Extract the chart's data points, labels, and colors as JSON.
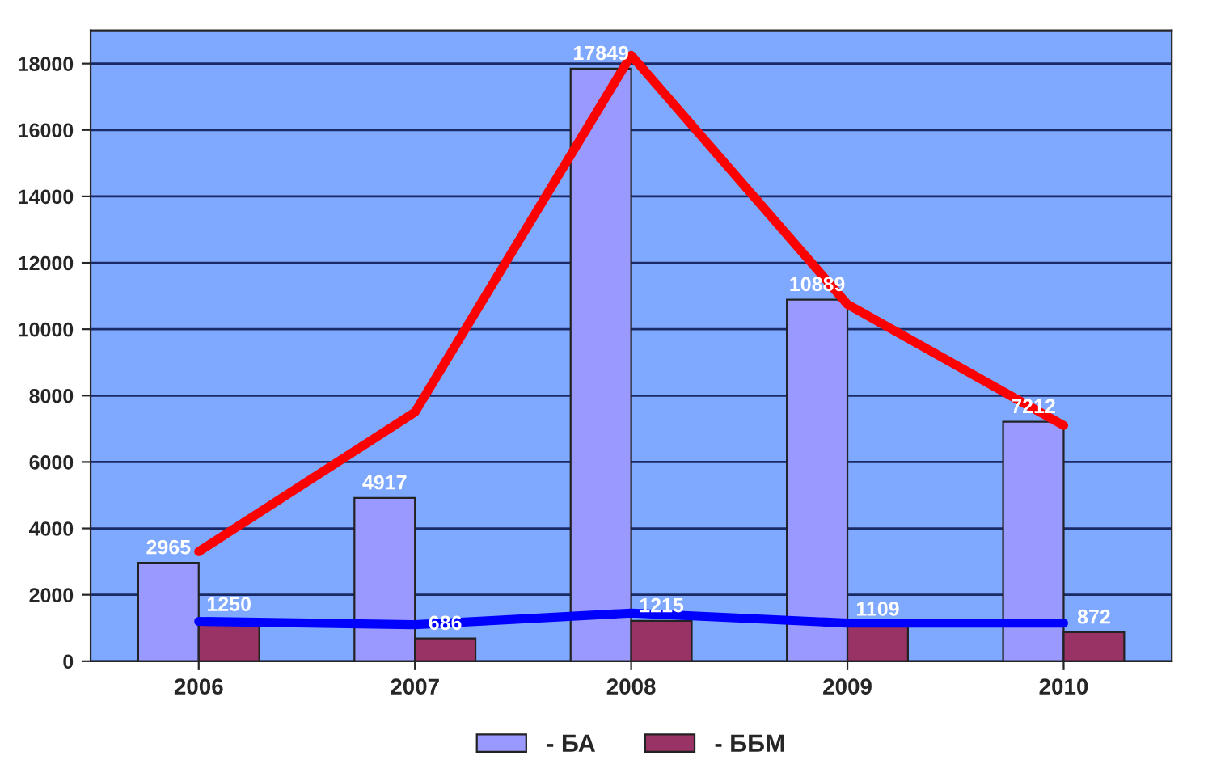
{
  "chart_data": {
    "type": "bar",
    "categories": [
      "2006",
      "2007",
      "2008",
      "2009",
      "2010"
    ],
    "series": [
      {
        "name": "- БА",
        "color": "#9999ff",
        "values": [
          2965,
          4917,
          17849,
          10889,
          7212
        ],
        "value_labels": [
          "2965",
          "4917",
          "17849",
          "10889",
          "7212"
        ]
      },
      {
        "name": "- ББМ",
        "color": "#993366",
        "values": [
          1250,
          686,
          1215,
          1109,
          872
        ],
        "value_labels": [
          "1250",
          "686",
          "1215",
          "1109",
          "872"
        ]
      },
      {
        "type": "line",
        "color": "#ff0000",
        "values": [
          3300,
          7500,
          18250,
          10750,
          7100
        ]
      },
      {
        "type": "line",
        "color": "#0000ff",
        "values": [
          1200,
          1100,
          1450,
          1150,
          1150
        ]
      }
    ],
    "ylim": [
      0,
      19000
    ],
    "yticks": [
      0,
      2000,
      4000,
      6000,
      8000,
      10000,
      12000,
      14000,
      16000,
      18000
    ],
    "grid": "y",
    "legend": "bottom"
  }
}
